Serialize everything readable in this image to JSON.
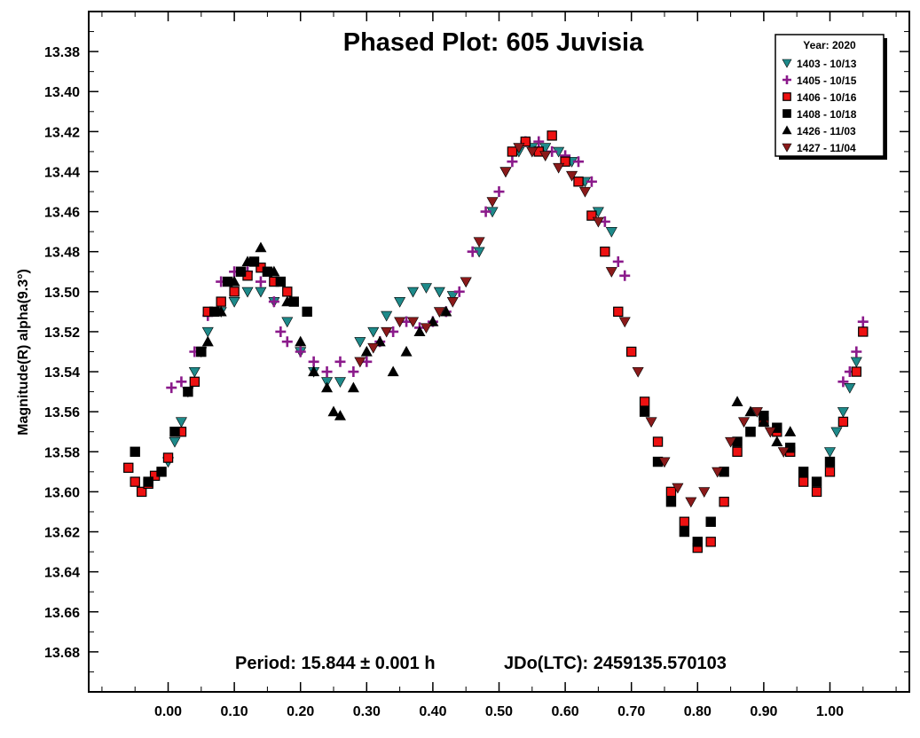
{
  "chart_data": {
    "type": "scatter",
    "title": "Phased Plot: 605 Juvisia",
    "ylabel": "Magnitude(R) alpha(9.3°)",
    "xlabel": "",
    "xlim": [
      -0.12,
      1.12
    ],
    "ylim": [
      13.36,
      13.7
    ],
    "y_inverted": true,
    "x_ticks": [
      "0.00",
      "0.10",
      "0.20",
      "0.30",
      "0.40",
      "0.50",
      "0.60",
      "0.70",
      "0.80",
      "0.90",
      "1.00"
    ],
    "y_ticks": [
      "13.38",
      "13.40",
      "13.42",
      "13.44",
      "13.46",
      "13.48",
      "13.50",
      "13.52",
      "13.54",
      "13.56",
      "13.58",
      "13.60",
      "13.62",
      "13.64",
      "13.66",
      "13.68"
    ],
    "grid": false,
    "legend_position": "top-right",
    "legend_title": "Year: 2020",
    "footer": {
      "period": "Period: 15.844 ± 0.001 h",
      "epoch": "JDo(LTC): 2459135.570103"
    },
    "series": [
      {
        "name": "1403 - 10/13",
        "color": "#1e8a8a",
        "marker": "triangle-down",
        "points": [
          [
            0.0,
            13.585
          ],
          [
            0.01,
            13.575
          ],
          [
            0.02,
            13.565
          ],
          [
            0.03,
            13.55
          ],
          [
            0.04,
            13.54
          ],
          [
            0.05,
            13.53
          ],
          [
            0.06,
            13.52
          ],
          [
            0.08,
            13.51
          ],
          [
            0.1,
            13.505
          ],
          [
            0.12,
            13.5
          ],
          [
            0.14,
            13.5
          ],
          [
            0.16,
            13.505
          ],
          [
            0.18,
            13.515
          ],
          [
            0.2,
            13.53
          ],
          [
            0.22,
            13.54
          ],
          [
            0.24,
            13.545
          ],
          [
            0.26,
            13.545
          ],
          [
            0.29,
            13.525
          ],
          [
            0.31,
            13.52
          ],
          [
            0.33,
            13.512
          ],
          [
            0.35,
            13.505
          ],
          [
            0.37,
            13.5
          ],
          [
            0.39,
            13.498
          ],
          [
            0.41,
            13.5
          ],
          [
            0.43,
            13.502
          ],
          [
            0.45,
            13.495
          ],
          [
            0.47,
            13.48
          ],
          [
            0.49,
            13.46
          ],
          [
            0.51,
            13.44
          ],
          [
            0.53,
            13.43
          ],
          [
            0.55,
            13.428
          ],
          [
            0.57,
            13.428
          ],
          [
            0.59,
            13.43
          ],
          [
            0.61,
            13.435
          ],
          [
            0.63,
            13.445
          ],
          [
            0.65,
            13.46
          ],
          [
            0.67,
            13.47
          ],
          [
            1.0,
            13.58
          ],
          [
            1.01,
            13.57
          ],
          [
            1.02,
            13.56
          ],
          [
            1.03,
            13.548
          ],
          [
            1.04,
            13.535
          ]
        ]
      },
      {
        "name": "1405 - 10/15",
        "color": "#8b1a8b",
        "marker": "plus",
        "points": [
          [
            0.005,
            13.548
          ],
          [
            0.02,
            13.545
          ],
          [
            0.04,
            13.53
          ],
          [
            0.06,
            13.512
          ],
          [
            0.08,
            13.495
          ],
          [
            0.1,
            13.49
          ],
          [
            0.12,
            13.49
          ],
          [
            0.14,
            13.495
          ],
          [
            0.16,
            13.505
          ],
          [
            0.17,
            13.52
          ],
          [
            0.18,
            13.525
          ],
          [
            0.2,
            13.53
          ],
          [
            0.22,
            13.535
          ],
          [
            0.24,
            13.54
          ],
          [
            0.26,
            13.535
          ],
          [
            0.28,
            13.54
          ],
          [
            0.3,
            13.535
          ],
          [
            0.32,
            13.525
          ],
          [
            0.34,
            13.52
          ],
          [
            0.36,
            13.515
          ],
          [
            0.38,
            13.518
          ],
          [
            0.4,
            13.515
          ],
          [
            0.42,
            13.51
          ],
          [
            0.44,
            13.5
          ],
          [
            0.46,
            13.48
          ],
          [
            0.48,
            13.46
          ],
          [
            0.5,
            13.45
          ],
          [
            0.52,
            13.435
          ],
          [
            0.54,
            13.425
          ],
          [
            0.56,
            13.425
          ],
          [
            0.58,
            13.43
          ],
          [
            0.6,
            13.432
          ],
          [
            0.62,
            13.435
          ],
          [
            0.64,
            13.445
          ],
          [
            0.66,
            13.465
          ],
          [
            0.68,
            13.485
          ],
          [
            0.69,
            13.492
          ],
          [
            1.02,
            13.545
          ],
          [
            1.03,
            13.54
          ],
          [
            1.04,
            13.53
          ],
          [
            1.05,
            13.515
          ]
        ]
      },
      {
        "name": "1406 - 10/16",
        "color": "#ee1111",
        "marker": "square",
        "points": [
          [
            -0.06,
            13.588
          ],
          [
            -0.05,
            13.595
          ],
          [
            -0.04,
            13.6
          ],
          [
            -0.03,
            13.596
          ],
          [
            -0.02,
            13.592
          ],
          [
            0.0,
            13.583
          ],
          [
            0.02,
            13.57
          ],
          [
            0.04,
            13.545
          ],
          [
            0.05,
            13.53
          ],
          [
            0.06,
            13.51
          ],
          [
            0.08,
            13.505
          ],
          [
            0.1,
            13.5
          ],
          [
            0.12,
            13.492
          ],
          [
            0.14,
            13.488
          ],
          [
            0.16,
            13.495
          ],
          [
            0.18,
            13.5
          ],
          [
            0.52,
            13.43
          ],
          [
            0.54,
            13.425
          ],
          [
            0.56,
            13.43
          ],
          [
            0.58,
            13.422
          ],
          [
            0.6,
            13.435
          ],
          [
            0.62,
            13.445
          ],
          [
            0.64,
            13.462
          ],
          [
            0.66,
            13.48
          ],
          [
            0.68,
            13.51
          ],
          [
            0.7,
            13.53
          ],
          [
            0.72,
            13.555
          ],
          [
            0.74,
            13.575
          ],
          [
            0.76,
            13.6
          ],
          [
            0.78,
            13.615
          ],
          [
            0.8,
            13.628
          ],
          [
            0.82,
            13.625
          ],
          [
            0.84,
            13.605
          ],
          [
            0.86,
            13.58
          ],
          [
            0.88,
            13.57
          ],
          [
            0.9,
            13.565
          ],
          [
            0.92,
            13.57
          ],
          [
            0.94,
            13.58
          ],
          [
            0.96,
            13.595
          ],
          [
            0.98,
            13.6
          ],
          [
            1.0,
            13.59
          ],
          [
            1.02,
            13.565
          ],
          [
            1.04,
            13.54
          ],
          [
            1.05,
            13.52
          ]
        ]
      },
      {
        "name": "1408 - 10/18",
        "color": "#000000",
        "marker": "square",
        "points": [
          [
            -0.05,
            13.58
          ],
          [
            -0.03,
            13.595
          ],
          [
            -0.01,
            13.59
          ],
          [
            0.01,
            13.57
          ],
          [
            0.03,
            13.55
          ],
          [
            0.05,
            13.53
          ],
          [
            0.07,
            13.51
          ],
          [
            0.09,
            13.495
          ],
          [
            0.11,
            13.49
          ],
          [
            0.13,
            13.485
          ],
          [
            0.15,
            13.49
          ],
          [
            0.17,
            13.495
          ],
          [
            0.19,
            13.505
          ],
          [
            0.21,
            13.51
          ],
          [
            0.72,
            13.56
          ],
          [
            0.74,
            13.585
          ],
          [
            0.76,
            13.605
          ],
          [
            0.78,
            13.62
          ],
          [
            0.8,
            13.625
          ],
          [
            0.82,
            13.615
          ],
          [
            0.84,
            13.59
          ],
          [
            0.86,
            13.575
          ],
          [
            0.88,
            13.57
          ],
          [
            0.9,
            13.562
          ],
          [
            0.92,
            13.568
          ],
          [
            0.94,
            13.578
          ],
          [
            0.96,
            13.59
          ],
          [
            0.98,
            13.595
          ],
          [
            1.0,
            13.585
          ]
        ]
      },
      {
        "name": "1426 - 11/03",
        "color": "#000000",
        "marker": "triangle-up",
        "points": [
          [
            0.06,
            13.525
          ],
          [
            0.08,
            13.51
          ],
          [
            0.1,
            13.495
          ],
          [
            0.12,
            13.485
          ],
          [
            0.14,
            13.478
          ],
          [
            0.16,
            13.49
          ],
          [
            0.18,
            13.505
          ],
          [
            0.2,
            13.525
          ],
          [
            0.22,
            13.54
          ],
          [
            0.24,
            13.548
          ],
          [
            0.25,
            13.56
          ],
          [
            0.26,
            13.562
          ],
          [
            0.28,
            13.548
          ],
          [
            0.3,
            13.53
          ],
          [
            0.32,
            13.525
          ],
          [
            0.34,
            13.54
          ],
          [
            0.36,
            13.53
          ],
          [
            0.38,
            13.52
          ],
          [
            0.4,
            13.515
          ],
          [
            0.42,
            13.51
          ],
          [
            0.86,
            13.555
          ],
          [
            0.88,
            13.56
          ],
          [
            0.9,
            13.565
          ],
          [
            0.92,
            13.575
          ],
          [
            0.94,
            13.57
          ]
        ]
      },
      {
        "name": "1427 - 11/04",
        "color": "#8b1a1a",
        "marker": "triangle-down",
        "points": [
          [
            0.29,
            13.535
          ],
          [
            0.31,
            13.528
          ],
          [
            0.33,
            13.52
          ],
          [
            0.35,
            13.515
          ],
          [
            0.37,
            13.515
          ],
          [
            0.39,
            13.518
          ],
          [
            0.41,
            13.51
          ],
          [
            0.43,
            13.505
          ],
          [
            0.45,
            13.495
          ],
          [
            0.47,
            13.475
          ],
          [
            0.49,
            13.455
          ],
          [
            0.51,
            13.44
          ],
          [
            0.53,
            13.428
          ],
          [
            0.55,
            13.43
          ],
          [
            0.57,
            13.432
          ],
          [
            0.59,
            13.438
          ],
          [
            0.61,
            13.442
          ],
          [
            0.63,
            13.45
          ],
          [
            0.65,
            13.465
          ],
          [
            0.67,
            13.49
          ],
          [
            0.69,
            13.515
          ],
          [
            0.71,
            13.54
          ],
          [
            0.73,
            13.565
          ],
          [
            0.75,
            13.585
          ],
          [
            0.77,
            13.598
          ],
          [
            0.79,
            13.605
          ],
          [
            0.81,
            13.6
          ],
          [
            0.83,
            13.59
          ],
          [
            0.85,
            13.575
          ],
          [
            0.87,
            13.565
          ],
          [
            0.89,
            13.56
          ],
          [
            0.91,
            13.57
          ],
          [
            0.93,
            13.58
          ]
        ]
      }
    ]
  }
}
